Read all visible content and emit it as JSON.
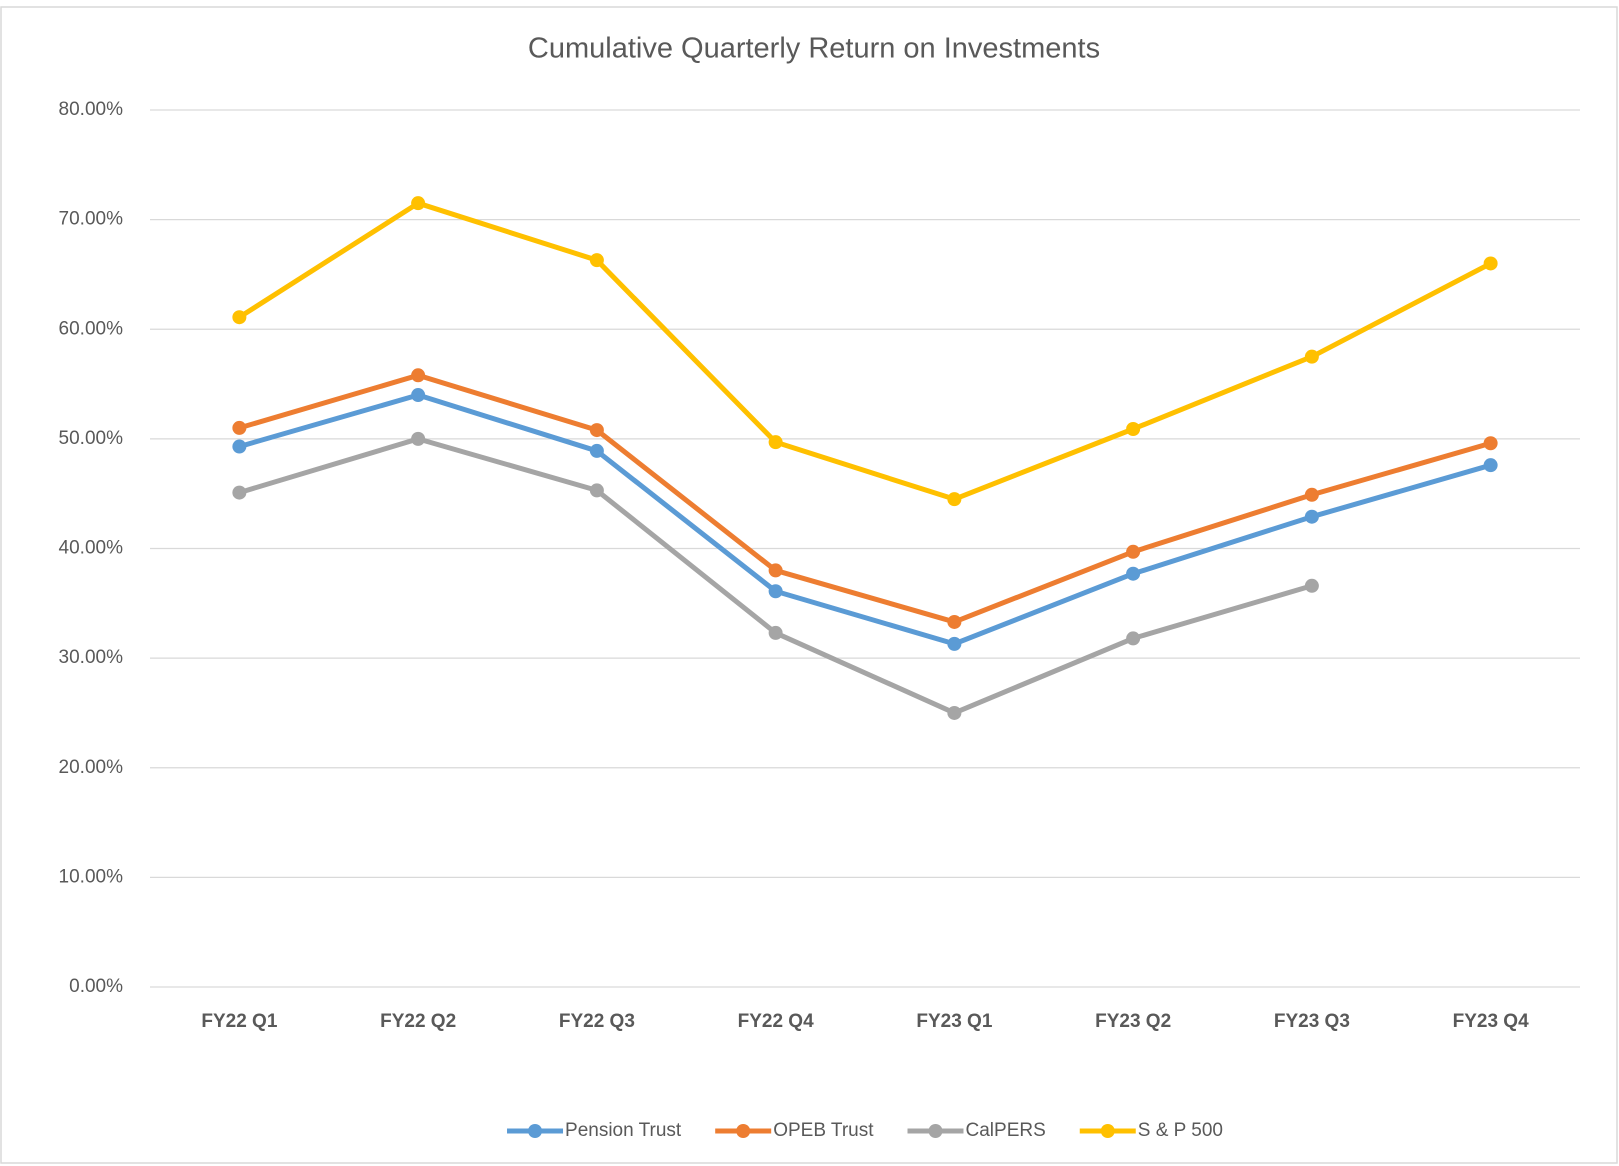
{
  "chart_data": {
    "type": "line",
    "title": "Cumulative Quarterly  Return on Investments",
    "categories": [
      "FY22 Q1",
      "FY22 Q2",
      "FY22 Q3",
      "FY22 Q4",
      "FY23 Q1",
      "FY23 Q2",
      "FY23 Q3",
      "FY23 Q4"
    ],
    "series": [
      {
        "name": "Pension Trust",
        "color": "#5b9bd5",
        "values": [
          49.3,
          54.0,
          48.9,
          36.1,
          31.3,
          37.7,
          42.9,
          47.6
        ]
      },
      {
        "name": "OPEB Trust",
        "color": "#ed7d31",
        "values": [
          51.0,
          55.8,
          50.8,
          38.0,
          33.3,
          39.7,
          44.9,
          49.6
        ]
      },
      {
        "name": "CalPERS",
        "color": "#a5a5a5",
        "values": [
          45.1,
          50.0,
          45.3,
          32.3,
          25.0,
          31.8,
          36.6,
          null
        ]
      },
      {
        "name": "S & P 500",
        "color": "#ffc000",
        "values": [
          61.1,
          71.5,
          66.3,
          49.7,
          44.5,
          50.9,
          57.5,
          66.0
        ]
      }
    ],
    "ylim": [
      0,
      80
    ],
    "yticks": [
      {
        "value": 0,
        "label": "0.00%"
      },
      {
        "value": 10,
        "label": "10.00%"
      },
      {
        "value": 20,
        "label": "20.00%"
      },
      {
        "value": 30,
        "label": "30.00%"
      },
      {
        "value": 40,
        "label": "40.00%"
      },
      {
        "value": 50,
        "label": "50.00%"
      },
      {
        "value": 60,
        "label": "60.00%"
      },
      {
        "value": 70,
        "label": "70.00%"
      },
      {
        "value": 80,
        "label": "80.00%"
      }
    ],
    "grid": true,
    "legend": "bottom"
  }
}
